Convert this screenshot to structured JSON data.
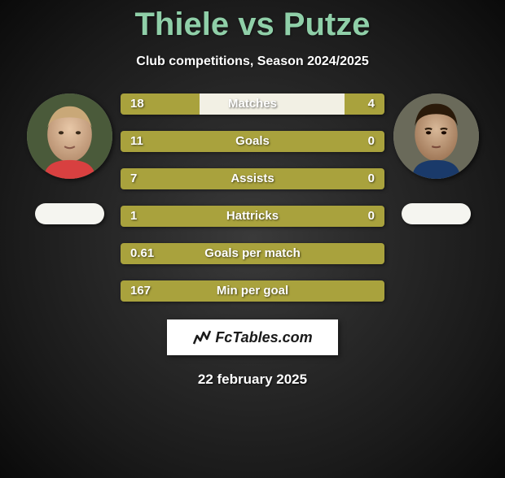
{
  "title": "Thiele vs Putze",
  "subtitle": "Club competitions, Season 2024/2025",
  "footer_date": "22 february 2025",
  "footer_brand": "FcTables.com",
  "colors": {
    "title": "#8fcfa8",
    "bar_fill": "#a9a23d",
    "bar_gap": "#f2f0e4",
    "text": "#ffffff",
    "badge_bg": "#ffffff",
    "badge_text": "#1a1a1a"
  },
  "players": {
    "left": {
      "name": "Thiele"
    },
    "right": {
      "name": "Putze"
    }
  },
  "stats": [
    {
      "label": "Matches",
      "left_val": "18",
      "right_val": "4",
      "left_pct": 30,
      "gap_pct": 55,
      "right_pct": 15
    },
    {
      "label": "Goals",
      "left_val": "11",
      "right_val": "0",
      "left_pct": 100,
      "gap_pct": 0,
      "right_pct": 0
    },
    {
      "label": "Assists",
      "left_val": "7",
      "right_val": "0",
      "left_pct": 100,
      "gap_pct": 0,
      "right_pct": 0
    },
    {
      "label": "Hattricks",
      "left_val": "1",
      "right_val": "0",
      "left_pct": 100,
      "gap_pct": 0,
      "right_pct": 0
    },
    {
      "label": "Goals per match",
      "left_val": "0.61",
      "right_val": "",
      "left_pct": 100,
      "gap_pct": 0,
      "right_pct": 0
    },
    {
      "label": "Min per goal",
      "left_val": "167",
      "right_val": "",
      "left_pct": 100,
      "gap_pct": 0,
      "right_pct": 0
    }
  ]
}
